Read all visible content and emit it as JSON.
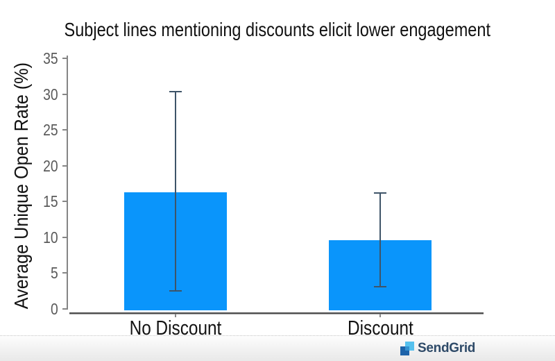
{
  "chart_title": "Subject lines mentioning discounts elicit lower engagement",
  "chart_data": {
    "type": "bar",
    "title": "Subject lines mentioning discounts elicit lower engagement",
    "xlabel": "",
    "ylabel": "Average Unique Open Rate (%)",
    "categories": [
      "No Discount",
      "Discount"
    ],
    "values": [
      16.3,
      9.6
    ],
    "error_bars": {
      "low": [
        2.5,
        3.1
      ],
      "high": [
        30.3,
        16.2
      ]
    },
    "ylim": [
      0,
      35
    ],
    "yticks": [
      0,
      5,
      10,
      15,
      20,
      25,
      30,
      35
    ],
    "grid": false,
    "legend": false,
    "bar_color": "#0a95fb",
    "error_bar_color": "#3e5468",
    "axis_color": "#858585",
    "tick_label_color": "#595959"
  },
  "footer": {
    "brand_name": "SendGrid",
    "wordmark_color": "#2e4a68",
    "logo_colors": {
      "light": "#55c1ee",
      "dark": "#1d63a9",
      "overlap": "#3391d0"
    }
  }
}
